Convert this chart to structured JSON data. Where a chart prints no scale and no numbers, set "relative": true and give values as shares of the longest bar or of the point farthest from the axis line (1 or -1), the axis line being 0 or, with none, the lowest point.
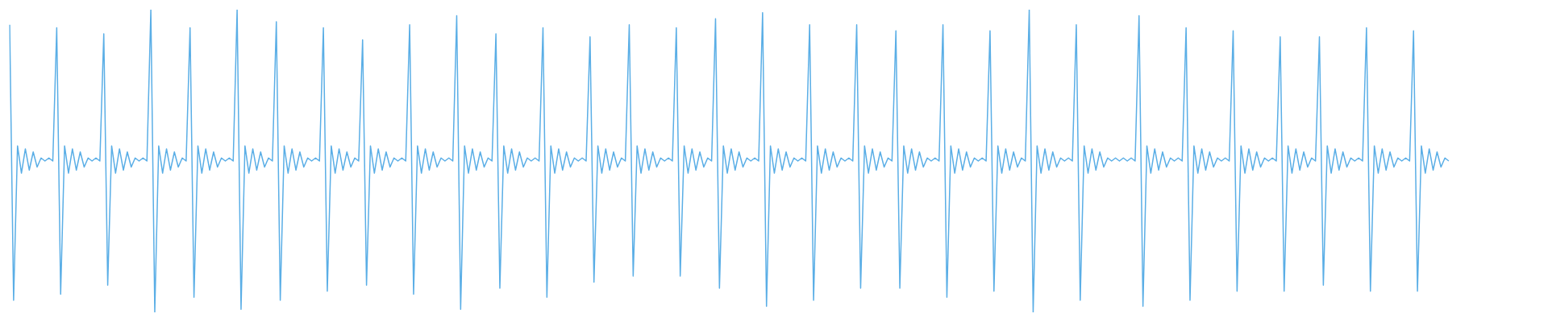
{
  "chart_data": {
    "type": "line",
    "relative": true,
    "color": "#5aaee6",
    "categories": [
      null,
      null,
      null,
      null,
      null,
      null,
      null,
      null,
      null,
      null,
      null,
      null,
      null,
      null,
      null,
      null,
      null,
      null,
      null,
      null,
      null,
      null,
      null,
      null,
      null,
      null,
      null,
      null,
      null,
      null,
      null,
      null,
      null,
      null,
      null,
      null,
      null,
      null,
      null,
      null,
      null,
      null,
      null,
      null,
      null,
      null,
      null,
      null,
      null,
      null,
      null,
      null,
      null,
      null,
      null,
      null,
      null,
      null,
      null,
      null,
      null,
      null,
      null,
      null,
      null,
      null,
      null,
      null,
      null,
      null,
      null,
      null,
      null,
      null,
      null,
      null,
      null,
      null,
      null,
      null,
      null,
      null,
      null,
      null,
      null,
      null,
      null,
      null,
      null,
      null,
      null,
      null,
      null,
      null,
      null,
      null,
      null,
      null,
      null,
      null,
      null,
      null,
      null,
      null,
      null,
      null,
      null,
      null,
      null,
      null,
      null,
      null,
      null,
      null,
      null,
      null,
      null,
      null,
      null,
      null,
      null,
      null,
      null,
      null,
      null,
      null,
      null,
      null,
      null,
      null,
      null,
      null,
      null,
      null,
      null,
      null,
      null,
      null,
      null,
      null,
      null,
      null,
      null,
      null,
      null,
      null,
      null,
      null,
      null,
      null,
      null,
      null,
      null,
      null,
      null,
      null,
      null,
      null,
      null,
      null,
      null,
      null,
      null,
      null,
      null,
      null,
      null,
      null,
      null,
      null,
      null,
      null,
      null,
      null,
      null,
      null,
      null,
      null,
      null,
      null,
      null,
      null,
      null,
      null,
      null,
      null,
      null,
      null,
      null,
      null,
      null,
      null,
      null,
      null,
      null,
      null,
      null,
      null,
      null,
      null,
      null,
      null,
      null,
      null,
      null,
      null,
      null,
      null,
      null,
      null,
      null,
      null,
      null,
      null,
      null,
      null,
      null,
      null,
      null,
      null,
      null,
      null,
      null,
      null,
      null,
      null,
      null,
      null,
      null,
      null,
      null,
      null,
      null,
      null,
      null,
      null,
      null,
      null,
      null,
      null,
      null,
      null,
      null,
      null,
      null,
      null,
      null,
      null,
      null,
      null,
      null,
      null,
      null,
      null,
      null,
      null,
      null,
      null,
      null,
      null,
      null,
      null,
      null,
      null,
      null,
      null,
      null,
      null,
      null,
      null,
      null,
      null,
      null,
      null,
      null,
      null,
      null,
      null,
      null,
      null,
      null,
      null,
      null,
      null,
      null,
      null,
      null,
      null,
      null,
      null,
      null,
      null,
      null,
      null,
      null,
      null,
      null,
      null,
      null,
      null,
      null,
      null,
      null,
      null,
      null,
      null,
      null,
      null,
      null,
      null,
      null,
      null,
      null,
      null,
      null,
      null,
      null,
      null,
      null,
      null,
      null,
      null,
      null,
      null,
      null,
      null,
      null,
      null,
      null,
      null,
      null,
      null,
      null,
      null,
      null,
      null,
      null,
      null,
      null,
      null,
      null,
      null,
      null,
      null,
      null,
      null,
      null,
      null,
      null,
      null,
      null,
      null,
      null,
      null,
      null,
      null,
      null,
      null,
      null,
      null,
      null,
      null,
      null,
      null,
      null,
      null,
      null,
      null
    ],
    "values": [
      0.95,
      0.04,
      0.55,
      0.46,
      0.54,
      0.47,
      0.53,
      0.48,
      0.51,
      0.5,
      0.51,
      0.5,
      0.94,
      0.06,
      0.55,
      0.46,
      0.54,
      0.47,
      0.53,
      0.48,
      0.51,
      0.5,
      0.51,
      0.5,
      0.92,
      0.09,
      0.55,
      0.46,
      0.54,
      0.47,
      0.53,
      0.48,
      0.51,
      0.5,
      0.51,
      0.5,
      1,
      0,
      0.55,
      0.46,
      0.54,
      0.47,
      0.53,
      0.48,
      0.51,
      0.5,
      0.94,
      0.05,
      0.55,
      0.46,
      0.54,
      0.47,
      0.53,
      0.48,
      0.51,
      0.5,
      0.51,
      0.5,
      1,
      0.01,
      0.55,
      0.46,
      0.54,
      0.47,
      0.53,
      0.48,
      0.51,
      0.5,
      0.96,
      0.04,
      0.55,
      0.46,
      0.54,
      0.47,
      0.53,
      0.48,
      0.51,
      0.5,
      0.51,
      0.5,
      0.94,
      0.07,
      0.55,
      0.46,
      0.54,
      0.47,
      0.53,
      0.48,
      0.51,
      0.5,
      0.9,
      0.09,
      0.55,
      0.46,
      0.54,
      0.47,
      0.53,
      0.48,
      0.51,
      0.5,
      0.51,
      0.5,
      0.95,
      0.06,
      0.55,
      0.46,
      0.54,
      0.47,
      0.53,
      0.48,
      0.51,
      0.5,
      0.51,
      0.5,
      0.98,
      0.01,
      0.55,
      0.46,
      0.54,
      0.47,
      0.53,
      0.48,
      0.51,
      0.5,
      0.92,
      0.08,
      0.55,
      0.46,
      0.54,
      0.47,
      0.53,
      0.48,
      0.51,
      0.5,
      0.51,
      0.5,
      0.94,
      0.05,
      0.55,
      0.46,
      0.54,
      0.47,
      0.53,
      0.48,
      0.51,
      0.5,
      0.51,
      0.5,
      0.91,
      0.1,
      0.55,
      0.46,
      0.54,
      0.47,
      0.53,
      0.48,
      0.51,
      0.5,
      0.95,
      0.12,
      0.55,
      0.46,
      0.54,
      0.47,
      0.53,
      0.48,
      0.51,
      0.5,
      0.51,
      0.5,
      0.94,
      0.12,
      0.55,
      0.46,
      0.54,
      0.47,
      0.53,
      0.48,
      0.51,
      0.5,
      0.97,
      0.08,
      0.55,
      0.46,
      0.54,
      0.47,
      0.53,
      0.48,
      0.51,
      0.5,
      0.51,
      0.5,
      0.99,
      0.02,
      0.55,
      0.46,
      0.54,
      0.47,
      0.53,
      0.48,
      0.51,
      0.5,
      0.51,
      0.5,
      0.95,
      0.04,
      0.55,
      0.46,
      0.54,
      0.47,
      0.53,
      0.48,
      0.51,
      0.5,
      0.51,
      0.5,
      0.95,
      0.08,
      0.55,
      0.46,
      0.54,
      0.47,
      0.53,
      0.48,
      0.51,
      0.5,
      0.93,
      0.08,
      0.55,
      0.46,
      0.54,
      0.47,
      0.53,
      0.48,
      0.51,
      0.5,
      0.51,
      0.5,
      0.95,
      0.05,
      0.55,
      0.46,
      0.54,
      0.47,
      0.53,
      0.48,
      0.51,
      0.5,
      0.51,
      0.5,
      0.93,
      0.07,
      0.55,
      0.46,
      0.54,
      0.47,
      0.53,
      0.48,
      0.51,
      0.5,
      1,
      0,
      0.55,
      0.46,
      0.54,
      0.47,
      0.53,
      0.48,
      0.51,
      0.5,
      0.51,
      0.5,
      0.95,
      0.04,
      0.55,
      0.46,
      0.54,
      0.47,
      0.53,
      0.48,
      0.51,
      0.5,
      0.51,
      0.5,
      0.51,
      0.5,
      0.51,
      0.5,
      0.98,
      0.02,
      0.55,
      0.46,
      0.54,
      0.47,
      0.53,
      0.48,
      0.51,
      0.5,
      0.51,
      0.5,
      0.94,
      0.04,
      0.55,
      0.46,
      0.54,
      0.47,
      0.53,
      0.48,
      0.51,
      0.5,
      0.51,
      0.5,
      0.93,
      0.07,
      0.55,
      0.46,
      0.54,
      0.47,
      0.53,
      0.48,
      0.51,
      0.5,
      0.51,
      0.5,
      0.91,
      0.07,
      0.55,
      0.46,
      0.54,
      0.47,
      0.53,
      0.48,
      0.51,
      0.5,
      0.91,
      0.09,
      0.55,
      0.46,
      0.54,
      0.47,
      0.53,
      0.48,
      0.51,
      0.5,
      0.51,
      0.5,
      0.94,
      0.07,
      0.55,
      0.46,
      0.54,
      0.47,
      0.53,
      0.48,
      0.51,
      0.5,
      0.51,
      0.5,
      0.93,
      0.07,
      0.55,
      0.46,
      0.54,
      0.47,
      0.53,
      0.48,
      0.51,
      0.5
    ]
  }
}
